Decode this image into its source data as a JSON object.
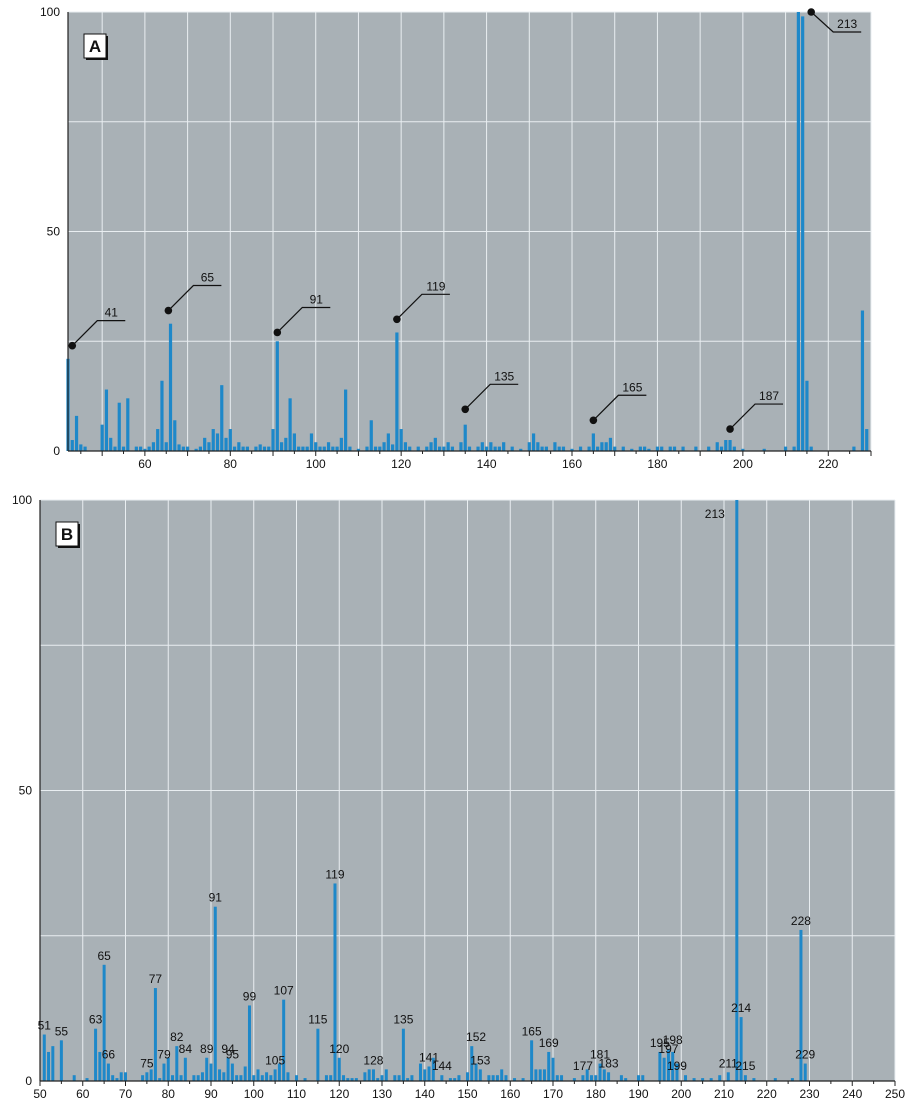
{
  "colors": {
    "bar": "#1e88c9",
    "panel": "#a9b1b6",
    "grid": "#e9eef1"
  },
  "chart_data": [
    {
      "type": "bar",
      "title": "A",
      "xlim": [
        42,
        230
      ],
      "ylim": [
        0,
        100
      ],
      "x_ticks": [
        "60",
        "80",
        "100",
        "120",
        "140",
        "160",
        "180",
        "200",
        "220"
      ],
      "y_ticks": [
        "0",
        "50",
        "100"
      ],
      "annotations": [
        {
          "label": "41",
          "x": 43,
          "y": 24
        },
        {
          "label": "65",
          "x": 65.5,
          "y": 32
        },
        {
          "label": "91",
          "x": 91,
          "y": 27
        },
        {
          "label": "119",
          "x": 119,
          "y": 30
        },
        {
          "label": "135",
          "x": 135,
          "y": 9.5
        },
        {
          "label": "165",
          "x": 165,
          "y": 7
        },
        {
          "label": "187",
          "x": 197,
          "y": 5
        },
        {
          "label": "213",
          "x": 216,
          "y": 100
        }
      ],
      "series": [
        {
          "x": [
            42,
            43,
            44,
            45,
            46,
            50,
            51,
            52,
            53,
            54,
            55,
            56,
            58,
            59,
            60,
            61,
            62,
            63,
            64,
            65,
            66,
            67,
            68,
            69,
            70,
            72,
            73,
            74,
            75,
            76,
            77,
            78,
            79,
            80,
            81,
            82,
            83,
            84,
            86,
            87,
            88,
            89,
            90,
            91,
            92,
            93,
            94,
            95,
            96,
            97,
            98,
            99,
            100,
            101,
            102,
            103,
            104,
            105,
            106,
            107,
            108,
            110,
            112,
            113,
            114,
            115,
            116,
            117,
            118,
            119,
            120,
            121,
            122,
            124,
            126,
            127,
            128,
            129,
            130,
            131,
            132,
            134,
            135,
            136,
            138,
            139,
            140,
            141,
            142,
            143,
            144,
            146,
            148,
            150,
            151,
            152,
            153,
            154,
            156,
            157,
            158,
            160,
            162,
            164,
            165,
            166,
            167,
            168,
            169,
            170,
            172,
            174,
            176,
            177,
            178,
            180,
            181,
            183,
            184,
            186,
            189,
            192,
            194,
            195,
            196,
            197,
            198,
            200,
            205,
            210,
            212,
            213,
            214,
            215,
            216,
            226,
            228,
            229
          ],
          "values": [
            21,
            2.5,
            8,
            1.5,
            1,
            6,
            14,
            3,
            1,
            11,
            1,
            12,
            1,
            1,
            0.5,
            1,
            2,
            5,
            16,
            2,
            29,
            7,
            1.5,
            1,
            1,
            0.5,
            1,
            3,
            2,
            5,
            4,
            15,
            3,
            5,
            1,
            2,
            1,
            1,
            1,
            1.5,
            1,
            1,
            5,
            25,
            2,
            3,
            12,
            4,
            1,
            1,
            1,
            4,
            2,
            1,
            1,
            2,
            1,
            1,
            3,
            14,
            1,
            0.5,
            1,
            7,
            1,
            1,
            2,
            4,
            1.5,
            27,
            5,
            2,
            1,
            1,
            1,
            2,
            3,
            1,
            1,
            2,
            1,
            2,
            6,
            1,
            1,
            2,
            1,
            2,
            1,
            1,
            2,
            1,
            0.5,
            2,
            4,
            2,
            1,
            1,
            2,
            1,
            1,
            0.5,
            1,
            1,
            4,
            1,
            2,
            2,
            3,
            1,
            1,
            0.5,
            1,
            1,
            0.5,
            1,
            1,
            1,
            1,
            1,
            1,
            1,
            2,
            1,
            2.5,
            2.5,
            1,
            0.5,
            0.5,
            1,
            1,
            100,
            99,
            16,
            1,
            1,
            32,
            5
          ]
        }
      ]
    },
    {
      "type": "bar",
      "title": "B",
      "xlim": [
        50,
        250
      ],
      "ylim": [
        0,
        100
      ],
      "x_ticks": [
        "50",
        "60",
        "70",
        "80",
        "90",
        "100",
        "110",
        "120",
        "130",
        "140",
        "150",
        "160",
        "170",
        "180",
        "190",
        "200",
        "210",
        "220",
        "230",
        "240",
        "250"
      ],
      "y_ticks": [
        "0",
        "50",
        "100"
      ],
      "series": [
        {
          "x": [
            51,
            52,
            53,
            55,
            58,
            61,
            63,
            64,
            65,
            66,
            67,
            68,
            69,
            70,
            74,
            75,
            76,
            77,
            78,
            79,
            80,
            81,
            82,
            83,
            84,
            86,
            87,
            88,
            89,
            90,
            91,
            92,
            93,
            94,
            95,
            96,
            97,
            98,
            99,
            100,
            101,
            102,
            103,
            104,
            105,
            106,
            107,
            108,
            110,
            112,
            115,
            117,
            118,
            119,
            120,
            121,
            122,
            123,
            124,
            126,
            127,
            128,
            129,
            130,
            131,
            133,
            134,
            135,
            136,
            137,
            139,
            140,
            141,
            142,
            144,
            146,
            147,
            148,
            150,
            151,
            152,
            153,
            155,
            156,
            157,
            158,
            159,
            161,
            163,
            165,
            166,
            167,
            168,
            169,
            170,
            171,
            172,
            175,
            177,
            178,
            179,
            180,
            181,
            182,
            183,
            186,
            187,
            190,
            191,
            195,
            196,
            197,
            198,
            199,
            201,
            203,
            205,
            207,
            209,
            211,
            213,
            214,
            215,
            217,
            222,
            226,
            228,
            229
          ],
          "values": [
            8,
            5,
            6,
            7,
            1,
            0.5,
            9,
            5,
            20,
            3,
            1,
            0.5,
            1.5,
            1.5,
            1,
            1.5,
            2,
            16,
            0.5,
            3,
            4,
            1,
            6,
            1,
            4,
            1,
            1,
            1.5,
            4,
            3,
            30,
            2,
            1.5,
            4,
            3,
            1,
            1,
            2.5,
            13,
            1,
            2,
            1,
            1.5,
            1,
            2,
            3,
            14,
            1.5,
            1,
            0.5,
            9,
            1,
            1,
            34,
            4,
            1,
            0.5,
            0.5,
            0.5,
            1.5,
            2,
            2,
            0.5,
            1,
            2,
            1,
            1,
            9,
            0.5,
            1,
            3,
            2,
            2.5,
            4,
            1,
            0.5,
            0.5,
            1,
            1.5,
            6,
            3,
            2,
            1,
            1,
            1,
            2,
            1,
            0.5,
            0.5,
            7,
            2,
            2,
            2,
            5,
            4,
            1,
            1,
            0.5,
            1,
            2,
            1,
            1,
            3,
            2,
            1.5,
            1,
            0.5,
            1,
            1,
            5,
            4,
            5.5,
            5,
            3,
            1,
            0.5,
            0.5,
            0.5,
            1,
            1.5,
            100,
            11,
            1,
            0.5,
            0.5,
            0.5,
            26,
            3
          ]
        }
      ],
      "data_labels": [
        {
          "label": "51",
          "x": 51,
          "y": 8
        },
        {
          "label": "55",
          "x": 55,
          "y": 7
        },
        {
          "label": "63",
          "x": 63,
          "y": 9
        },
        {
          "label": "65",
          "x": 65,
          "y": 20
        },
        {
          "label": "66",
          "x": 66,
          "y": 3
        },
        {
          "label": "75",
          "x": 75,
          "y": 1.5
        },
        {
          "label": "77",
          "x": 77,
          "y": 16
        },
        {
          "label": "79",
          "x": 79,
          "y": 3
        },
        {
          "label": "82",
          "x": 82,
          "y": 6
        },
        {
          "label": "84",
          "x": 84,
          "y": 4
        },
        {
          "label": "89",
          "x": 89,
          "y": 4
        },
        {
          "label": "91",
          "x": 91,
          "y": 30
        },
        {
          "label": "94",
          "x": 94,
          "y": 4
        },
        {
          "label": "95",
          "x": 95,
          "y": 3
        },
        {
          "label": "99",
          "x": 99,
          "y": 13
        },
        {
          "label": "105",
          "x": 105,
          "y": 2
        },
        {
          "label": "107",
          "x": 107,
          "y": 14
        },
        {
          "label": "115",
          "x": 115,
          "y": 9
        },
        {
          "label": "119",
          "x": 119,
          "y": 34
        },
        {
          "label": "120",
          "x": 120,
          "y": 4
        },
        {
          "label": "128",
          "x": 128,
          "y": 2
        },
        {
          "label": "135",
          "x": 135,
          "y": 9
        },
        {
          "label": "141",
          "x": 141,
          "y": 2.5
        },
        {
          "label": "144",
          "x": 144,
          "y": 1
        },
        {
          "label": "152",
          "x": 152,
          "y": 6
        },
        {
          "label": "153",
          "x": 153,
          "y": 2
        },
        {
          "label": "165",
          "x": 165,
          "y": 7
        },
        {
          "label": "169",
          "x": 169,
          "y": 5
        },
        {
          "label": "177",
          "x": 177,
          "y": 1
        },
        {
          "label": "181",
          "x": 181,
          "y": 3
        },
        {
          "label": "183",
          "x": 183,
          "y": 1.5
        },
        {
          "label": "195",
          "x": 195,
          "y": 5
        },
        {
          "label": "197",
          "x": 197,
          "y": 4
        },
        {
          "label": "198",
          "x": 198,
          "y": 5.5
        },
        {
          "label": "199",
          "x": 199,
          "y": 1
        },
        {
          "label": "211",
          "x": 211,
          "y": 1.5
        },
        {
          "label": "213",
          "x": 213,
          "y": 100
        },
        {
          "label": "214",
          "x": 214,
          "y": 11
        },
        {
          "label": "215",
          "x": 215,
          "y": 1
        },
        {
          "label": "228",
          "x": 228,
          "y": 26
        },
        {
          "label": "229",
          "x": 229,
          "y": 3
        }
      ]
    }
  ]
}
